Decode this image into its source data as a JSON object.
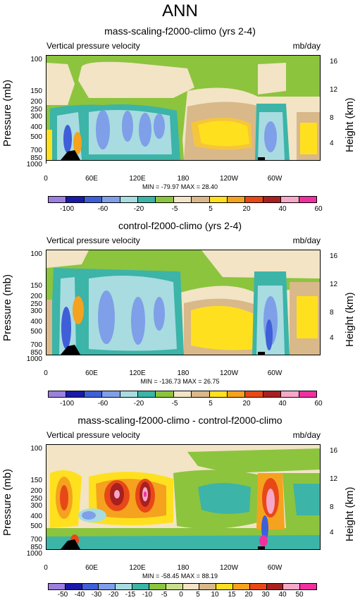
{
  "title": "ANN",
  "panels": [
    {
      "title": "mass-scaling-f2000-climo (yrs 2-4)",
      "variable": "Vertical pressure velocity",
      "units": "mb/day",
      "stats": "MIN = -79.97  MAX =  28.40",
      "colorbar_labels": [
        "-100",
        "-60",
        "-20",
        "-5",
        "5",
        "20",
        "40",
        "60"
      ]
    },
    {
      "title": "control-f2000-climo (yrs 2-4)",
      "variable": "Vertical pressure velocity",
      "units": "mb/day",
      "stats": "MIN = -136.73  MAX =  26.75",
      "colorbar_labels": [
        "-100",
        "-60",
        "-20",
        "-5",
        "5",
        "20",
        "40",
        "60"
      ]
    },
    {
      "title": "mass-scaling-f2000-climo - control-f2000-climo",
      "variable": "Vertical pressure velocity",
      "units": "mb/day",
      "stats": "MIN = -58.45  MAX =  88.19",
      "colorbar_labels": [
        "-50",
        "-40",
        "-30",
        "-20",
        "-15",
        "-10",
        "-5",
        "0",
        "5",
        "10",
        "15",
        "20",
        "30",
        "40",
        "50"
      ]
    }
  ],
  "axes": {
    "y_title": "Pressure (mb)",
    "y_right_title": "Height (km)",
    "y_ticks": [
      "100",
      "150",
      "200",
      "250",
      "300",
      "400",
      "500",
      "700",
      "850",
      "1000"
    ],
    "y_right_ticks": [
      "16",
      "12",
      "8",
      "4"
    ],
    "x_ticks": [
      "0",
      "60E",
      "120E",
      "180",
      "120W",
      "60W"
    ]
  },
  "colors": {
    "field_12": [
      "#9c7fe0",
      "#1a1aa8",
      "#3f5fd8",
      "#7f9fe8",
      "#a8dce0",
      "#3cb4a8",
      "#8cc43e",
      "#f2e4c4",
      "#d9b88a",
      "#ffe01e",
      "#f5a21e",
      "#e84818",
      "#a82020",
      "#f7a8c8",
      "#f030a0"
    ],
    "diff_16": [
      "#9c7fe0",
      "#1a1aa8",
      "#3f5fd8",
      "#7f9fe8",
      "#a8dce0",
      "#3cb4a8",
      "#8cc43e",
      "#c8e08c",
      "#f2e4c4",
      "#d9b88a",
      "#ffe01e",
      "#f5a21e",
      "#e84818",
      "#a82020",
      "#f7a8c8",
      "#f030a0"
    ]
  },
  "chart_data": [
    {
      "type": "heatmap",
      "title": "mass-scaling-f2000-climo (yrs 2-4)",
      "xlabel": "",
      "ylabel": "Pressure (mb)",
      "x_ticks": [
        "0",
        "60E",
        "120E",
        "180",
        "120W",
        "60W"
      ],
      "y_ticks": [
        100,
        150,
        200,
        250,
        300,
        400,
        500,
        700,
        850,
        1000
      ],
      "levels": [
        -100,
        -80,
        -60,
        -40,
        -20,
        -10,
        -5,
        0,
        5,
        10,
        20,
        30,
        40,
        50,
        60
      ],
      "min": -79.97,
      "max": 28.4
    },
    {
      "type": "heatmap",
      "title": "control-f2000-climo (yrs 2-4)",
      "xlabel": "",
      "ylabel": "Pressure (mb)",
      "x_ticks": [
        "0",
        "60E",
        "120E",
        "180",
        "120W",
        "60W"
      ],
      "y_ticks": [
        100,
        150,
        200,
        250,
        300,
        400,
        500,
        700,
        850,
        1000
      ],
      "levels": [
        -100,
        -80,
        -60,
        -40,
        -20,
        -10,
        -5,
        0,
        5,
        10,
        20,
        30,
        40,
        50,
        60
      ],
      "min": -136.73,
      "max": 26.75
    },
    {
      "type": "heatmap",
      "title": "mass-scaling-f2000-climo - control-f2000-climo",
      "xlabel": "",
      "ylabel": "Pressure (mb)",
      "x_ticks": [
        "0",
        "60E",
        "120E",
        "180",
        "120W",
        "60W"
      ],
      "y_ticks": [
        100,
        150,
        200,
        250,
        300,
        400,
        500,
        700,
        850,
        1000
      ],
      "levels": [
        -50,
        -40,
        -30,
        -20,
        -15,
        -10,
        -5,
        0,
        5,
        10,
        15,
        20,
        30,
        40,
        50
      ],
      "min": -58.45,
      "max": 88.19
    }
  ]
}
